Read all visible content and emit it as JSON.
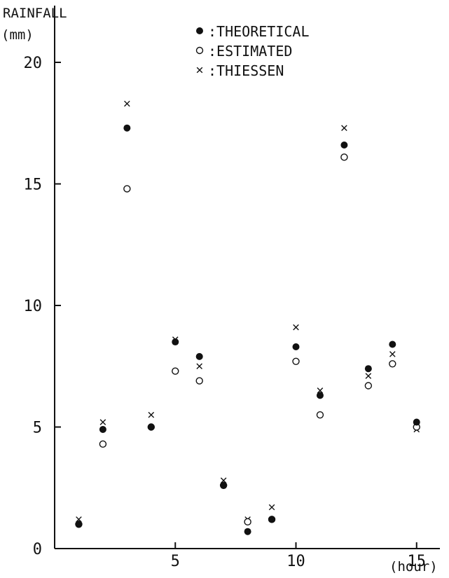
{
  "chart_data": {
    "type": "scatter",
    "title": "",
    "ylabel_line1": "RAINFALL",
    "ylabel_line2": "(mm)",
    "xlabel": "(hour)",
    "xlim": [
      0,
      16
    ],
    "ylim": [
      0,
      21
    ],
    "x_ticks": [
      5,
      10,
      15
    ],
    "x_tick_labels": [
      "5",
      "10",
      "15"
    ],
    "y_ticks": [
      0,
      5,
      10,
      15,
      20
    ],
    "y_tick_labels": [
      "0",
      "5",
      "10",
      "15",
      "20"
    ],
    "grid": false,
    "legend_position": "top-center",
    "series": [
      {
        "name": ":THEORETICAL",
        "marker": "filled-circle",
        "points": [
          [
            1,
            1.0
          ],
          [
            2,
            4.9
          ],
          [
            3,
            17.3
          ],
          [
            4,
            5.0
          ],
          [
            5,
            8.5
          ],
          [
            6,
            7.9
          ],
          [
            7,
            2.6
          ],
          [
            8,
            0.7
          ],
          [
            9,
            1.2
          ],
          [
            10,
            8.3
          ],
          [
            11,
            6.3
          ],
          [
            12,
            16.6
          ],
          [
            13,
            7.4
          ],
          [
            14,
            8.4
          ],
          [
            15,
            5.2
          ]
        ]
      },
      {
        "name": ":ESTIMATED",
        "marker": "open-circle",
        "points": [
          [
            1,
            1.0
          ],
          [
            2,
            4.3
          ],
          [
            3,
            14.8
          ],
          [
            4,
            5.0
          ],
          [
            5,
            7.3
          ],
          [
            6,
            6.9
          ],
          [
            7,
            2.6
          ],
          [
            8,
            1.1
          ],
          [
            9,
            1.2
          ],
          [
            10,
            7.7
          ],
          [
            11,
            5.5
          ],
          [
            12,
            16.1
          ],
          [
            13,
            6.7
          ],
          [
            14,
            7.6
          ],
          [
            15,
            5.0
          ]
        ]
      },
      {
        "name": ":THIESSEN",
        "marker": "cross",
        "points": [
          [
            1,
            1.2
          ],
          [
            2,
            5.2
          ],
          [
            3,
            18.3
          ],
          [
            4,
            5.5
          ],
          [
            5,
            8.6
          ],
          [
            6,
            7.5
          ],
          [
            7,
            2.8
          ],
          [
            8,
            1.2
          ],
          [
            9,
            1.7
          ],
          [
            10,
            9.1
          ],
          [
            11,
            6.5
          ],
          [
            12,
            17.3
          ],
          [
            13,
            7.1
          ],
          [
            14,
            8.0
          ],
          [
            15,
            4.9
          ]
        ]
      }
    ]
  }
}
